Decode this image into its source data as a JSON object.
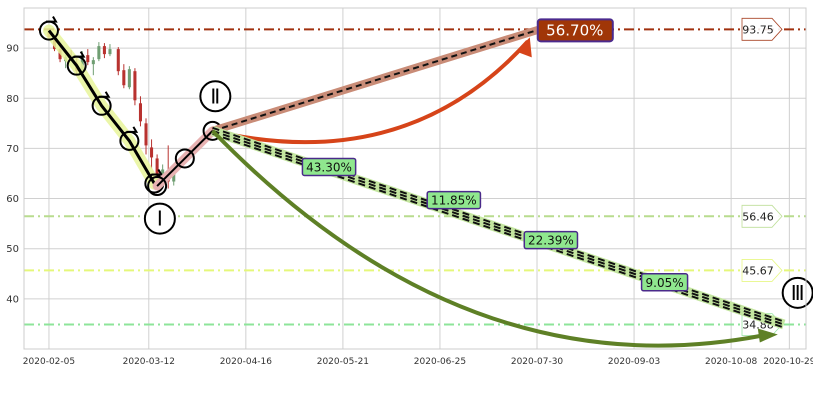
{
  "chart_data": {
    "type": "candlestick",
    "x_ticks": [
      "2020-02-05",
      "2020-03-12",
      "2020-04-16",
      "2020-05-21",
      "2020-06-25",
      "2020-07-30",
      "2020-09-03",
      "2020-10-08",
      "2020-10-29"
    ],
    "y_ticks": [
      40,
      50,
      60,
      70,
      80,
      90
    ],
    "ylim": [
      30,
      98
    ],
    "xlim": [
      "2020-01-27",
      "2020-11-04"
    ],
    "grid": true,
    "candles": [
      {
        "d": "2020-02-05",
        "o": 93.2,
        "h": 94.0,
        "l": 91.8,
        "c": 92.2
      },
      {
        "d": "2020-02-07",
        "o": 91.6,
        "h": 92.4,
        "l": 89.4,
        "c": 89.8
      },
      {
        "d": "2020-02-09",
        "o": 89.8,
        "h": 90.4,
        "l": 87.2,
        "c": 87.8
      },
      {
        "d": "2020-02-11",
        "o": 87.4,
        "h": 88.6,
        "l": 86.0,
        "c": 88.2
      },
      {
        "d": "2020-02-13",
        "o": 88.2,
        "h": 89.6,
        "l": 87.4,
        "c": 87.8
      },
      {
        "d": "2020-02-15",
        "o": 87.0,
        "h": 88.0,
        "l": 84.8,
        "c": 85.4
      },
      {
        "d": "2020-02-17",
        "o": 85.0,
        "h": 89.4,
        "l": 84.6,
        "c": 88.6
      },
      {
        "d": "2020-02-19",
        "o": 88.6,
        "h": 89.8,
        "l": 86.6,
        "c": 87.2
      },
      {
        "d": "2020-02-21",
        "o": 86.8,
        "h": 88.2,
        "l": 84.6,
        "c": 87.6
      },
      {
        "d": "2020-02-23",
        "o": 87.8,
        "h": 91.2,
        "l": 87.4,
        "c": 90.4
      },
      {
        "d": "2020-02-25",
        "o": 90.4,
        "h": 91.0,
        "l": 88.0,
        "c": 88.8
      },
      {
        "d": "2020-02-27",
        "o": 88.8,
        "h": 90.8,
        "l": 88.4,
        "c": 89.8
      },
      {
        "d": "2020-03-01",
        "o": 89.8,
        "h": 90.2,
        "l": 84.6,
        "c": 85.4
      },
      {
        "d": "2020-03-03",
        "o": 85.6,
        "h": 86.8,
        "l": 82.0,
        "c": 82.6
      },
      {
        "d": "2020-03-05",
        "o": 82.2,
        "h": 86.4,
        "l": 81.8,
        "c": 85.8
      },
      {
        "d": "2020-03-07",
        "o": 85.4,
        "h": 86.0,
        "l": 78.6,
        "c": 79.6
      },
      {
        "d": "2020-03-09",
        "o": 79.0,
        "h": 80.4,
        "l": 74.4,
        "c": 75.4
      },
      {
        "d": "2020-03-11",
        "o": 75.0,
        "h": 76.0,
        "l": 68.8,
        "c": 70.6
      },
      {
        "d": "2020-03-13",
        "o": 70.2,
        "h": 71.8,
        "l": 66.0,
        "c": 68.2
      },
      {
        "d": "2020-03-15",
        "o": 68.0,
        "h": 68.8,
        "l": 62.4,
        "c": 64.6
      },
      {
        "d": "2020-03-17",
        "o": 64.2,
        "h": 66.8,
        "l": 62.0,
        "c": 65.8
      },
      {
        "d": "2020-03-19",
        "o": 65.6,
        "h": 70.6,
        "l": 62.0,
        "c": 63.4
      },
      {
        "d": "2020-03-21",
        "o": 63.4,
        "h": 66.6,
        "l": 62.6,
        "c": 65.0
      }
    ],
    "trend_path": [
      {
        "d": "2020-02-05",
        "y": 93.5
      },
      {
        "d": "2020-02-15",
        "y": 86.5
      },
      {
        "d": "2020-02-24",
        "y": 78.5
      },
      {
        "d": "2020-03-05",
        "y": 71.5
      },
      {
        "d": "2020-03-14",
        "y": 63.0
      }
    ],
    "rebound_path": [
      {
        "d": "2020-03-15",
        "y": 62.5
      },
      {
        "d": "2020-03-25",
        "y": 68.0
      },
      {
        "d": "2020-04-04",
        "y": 73.5
      }
    ],
    "hlines": [
      {
        "y": 93.75,
        "label": "93.75",
        "color": "#a0300f"
      },
      {
        "y": 56.46,
        "label": "56.46",
        "color": "#b8dc8e"
      },
      {
        "y": 45.67,
        "label": "45.67",
        "color": "#e5f77a"
      },
      {
        "y": 34.88,
        "label": "34.88",
        "color": "#8de49a"
      }
    ],
    "up_target": {
      "from": {
        "d": "2020-04-04",
        "y": 73.5
      },
      "to": {
        "d": "2020-07-31",
        "y": 93.75
      },
      "label": "56.70%"
    },
    "down_target": {
      "from": {
        "d": "2020-04-04",
        "y": 73.5
      },
      "to": {
        "d": "2020-10-27",
        "y": 34.88
      }
    },
    "down_labels": [
      {
        "text": "43.30%",
        "d": "2020-05-16",
        "y": 66.2
      },
      {
        "text": "11.85%",
        "d": "2020-06-30",
        "y": 59.6
      },
      {
        "text": "22.39%",
        "d": "2020-08-04",
        "y": 51.6
      },
      {
        "text": "9.05%",
        "d": "2020-09-14",
        "y": 43.2
      }
    ],
    "wave_labels": [
      {
        "text": "Ⅰ",
        "d": "2020-03-16",
        "y": 56.0
      },
      {
        "text": "Ⅱ",
        "d": "2020-04-05",
        "y": 80.4
      },
      {
        "text": "Ⅲ",
        "d": "2020-11-01",
        "y": 41.2
      }
    ],
    "colors": {
      "up": "#6f9e72",
      "down": "#b8322f",
      "grid": "#d0d0d0",
      "frame": "#cccccc",
      "tick": "#333333"
    }
  }
}
